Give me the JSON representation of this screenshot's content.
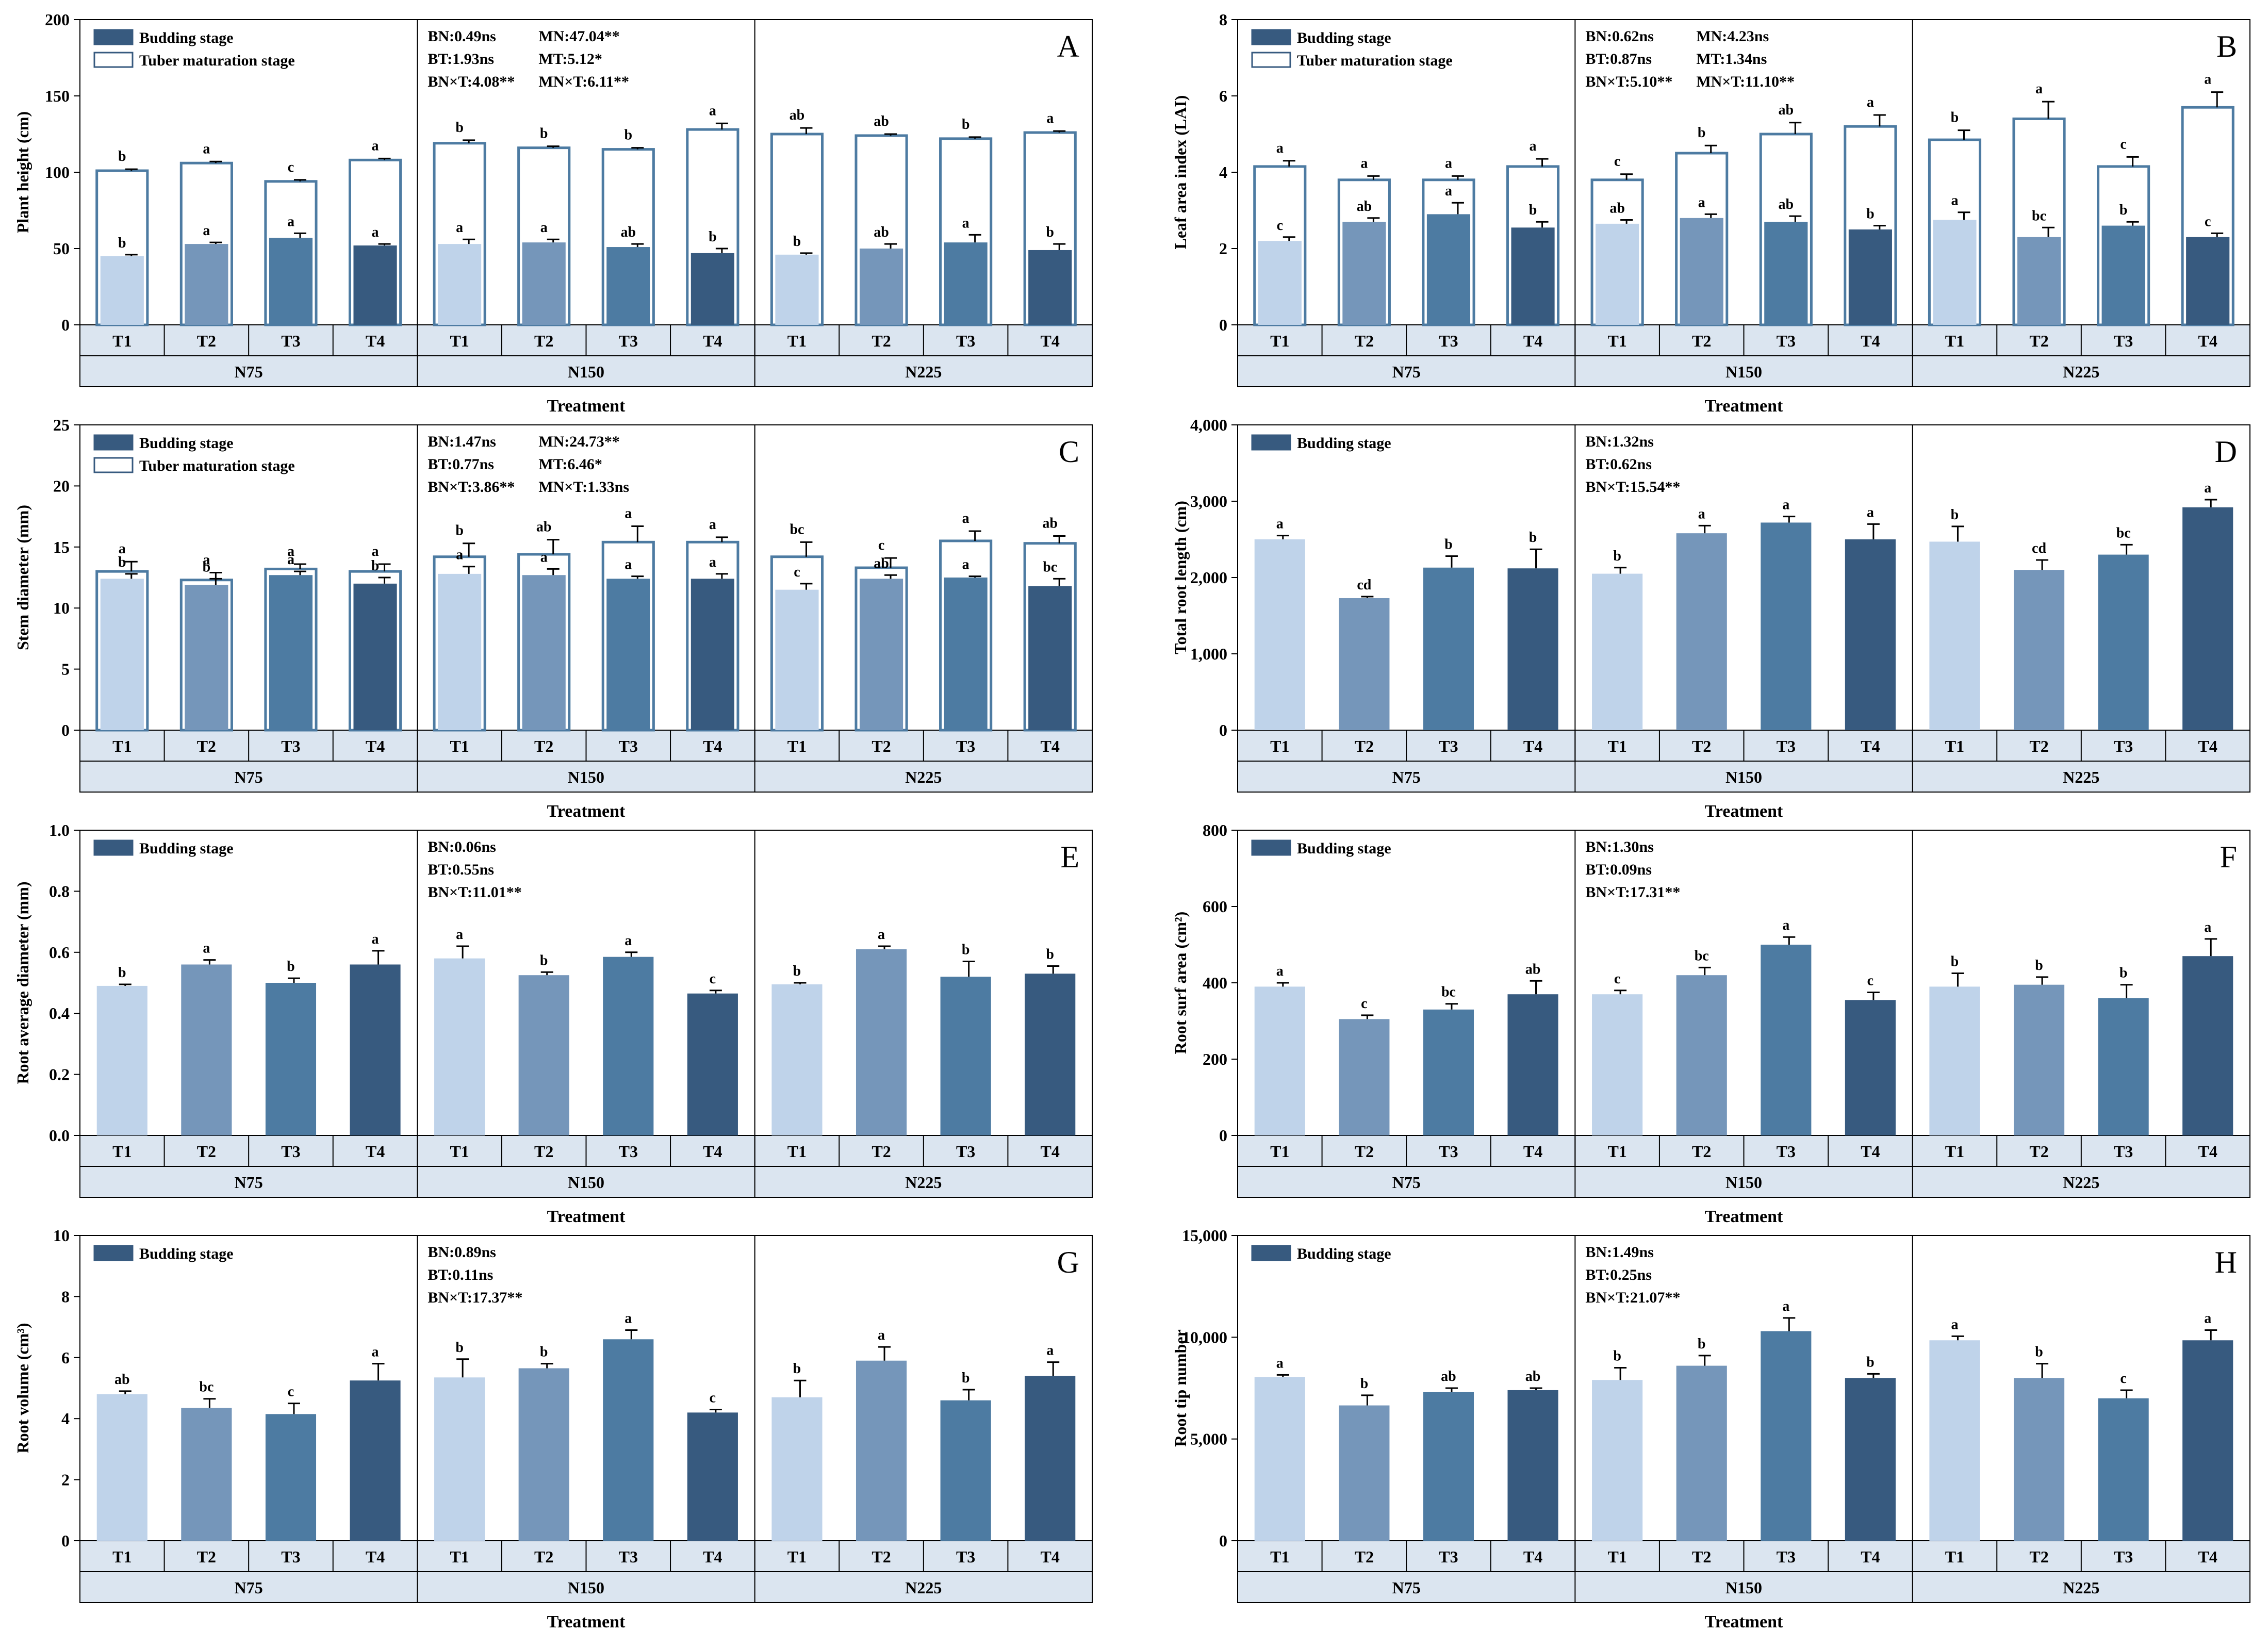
{
  "colors": {
    "T1": "#bfd3ea",
    "T2": "#7596ba",
    "T3": "#4d7ba2",
    "T4": "#375a7f",
    "legend_bud": "#375a7f",
    "outline": "#4d7ba2",
    "strip": "#dbe5f0",
    "axis": "#000000"
  },
  "chart_data": [
    {
      "id": "A",
      "type": "bar",
      "title": "A",
      "ylabel": "Plant height (cm)",
      "xlabel": "Treatment",
      "ylim": [
        0,
        200
      ],
      "yticks": [
        "0",
        "50",
        "100",
        "150",
        "200"
      ],
      "groups": [
        "N75",
        "N150",
        "N225"
      ],
      "categories": [
        "T1",
        "T2",
        "T3",
        "T4"
      ],
      "legend": [
        "Budding stage",
        "Tuber maturation stage"
      ],
      "stats": [
        [
          "BN:0.49ns",
          "BT:1.93ns",
          "BN×T:4.08**"
        ],
        [
          "MN:47.04**",
          "MT:5.12*",
          "MN×T:6.11**"
        ]
      ],
      "series": [
        {
          "name": "Budding stage",
          "values": [
            [
              45,
              53,
              57,
              52
            ],
            [
              53,
              54,
              51,
              47
            ],
            [
              46,
              50,
              54,
              49
            ]
          ],
          "errors": [
            [
              1,
              1,
              3,
              1
            ],
            [
              3,
              2,
              2,
              3
            ],
            [
              1,
              3,
              5,
              4
            ]
          ],
          "letters": [
            [
              "b",
              "a",
              "a",
              "a"
            ],
            [
              "a",
              "a",
              "ab",
              "b"
            ],
            [
              "b",
              "ab",
              "a",
              "b"
            ]
          ]
        },
        {
          "name": "Tuber maturation stage",
          "values": [
            [
              101,
              106,
              94,
              108
            ],
            [
              119,
              116,
              115,
              128
            ],
            [
              125,
              124,
              122,
              126
            ]
          ],
          "errors": [
            [
              1,
              1,
              1,
              1
            ],
            [
              2,
              1,
              1,
              4
            ],
            [
              4,
              1,
              1,
              1
            ]
          ],
          "letters": [
            [
              "b",
              "a",
              "c",
              "a"
            ],
            [
              "b",
              "b",
              "b",
              "a"
            ],
            [
              "ab",
              "ab",
              "b",
              "a"
            ]
          ]
        }
      ]
    },
    {
      "id": "B",
      "type": "bar",
      "title": "B",
      "ylabel": "Leaf area index (LAI)",
      "xlabel": "Treatment",
      "ylim": [
        0,
        8
      ],
      "yticks": [
        "0",
        "2",
        "4",
        "6",
        "8"
      ],
      "groups": [
        "N75",
        "N150",
        "N225"
      ],
      "categories": [
        "T1",
        "T2",
        "T3",
        "T4"
      ],
      "legend": [
        "Budding stage",
        "Tuber maturation stage"
      ],
      "stats": [
        [
          "BN:0.62ns",
          "BT:0.87ns",
          "BN×T:5.10**"
        ],
        [
          "MN:4.23ns",
          "MT:1.34ns",
          "MN×T:11.10**"
        ]
      ],
      "series": [
        {
          "name": "Budding stage",
          "values": [
            [
              2.2,
              2.7,
              2.9,
              2.55
            ],
            [
              2.65,
              2.8,
              2.7,
              2.5
            ],
            [
              2.75,
              2.3,
              2.6,
              2.3
            ]
          ],
          "errors": [
            [
              0.1,
              0.1,
              0.3,
              0.15
            ],
            [
              0.1,
              0.1,
              0.15,
              0.1
            ],
            [
              0.2,
              0.25,
              0.1,
              0.1
            ]
          ],
          "letters": [
            [
              "c",
              "ab",
              "a",
              "b"
            ],
            [
              "ab",
              "a",
              "ab",
              "b"
            ],
            [
              "a",
              "bc",
              "b",
              "c"
            ]
          ]
        },
        {
          "name": "Tuber maturation stage",
          "values": [
            [
              4.15,
              3.8,
              3.8,
              4.15
            ],
            [
              3.8,
              4.5,
              5.0,
              5.2
            ],
            [
              4.85,
              5.4,
              4.15,
              5.7
            ]
          ],
          "errors": [
            [
              0.15,
              0.1,
              0.1,
              0.2
            ],
            [
              0.15,
              0.2,
              0.3,
              0.3
            ],
            [
              0.25,
              0.45,
              0.25,
              0.4
            ]
          ],
          "letters": [
            [
              "a",
              "a",
              "a",
              "a"
            ],
            [
              "c",
              "b",
              "ab",
              "a"
            ],
            [
              "b",
              "a",
              "c",
              "a"
            ]
          ]
        }
      ]
    },
    {
      "id": "C",
      "type": "bar",
      "title": "C",
      "ylabel": "Stem diameter (mm)",
      "xlabel": "Treatment",
      "ylim": [
        0,
        25
      ],
      "yticks": [
        "0",
        "5",
        "10",
        "15",
        "20",
        "25"
      ],
      "groups": [
        "N75",
        "N150",
        "N225"
      ],
      "categories": [
        "T1",
        "T2",
        "T3",
        "T4"
      ],
      "legend": [
        "Budding stage",
        "Tuber maturation stage"
      ],
      "stats": [
        [
          "BN:1.47ns",
          "BT:0.77ns",
          "BN×T:3.86**"
        ],
        [
          "MN:24.73**",
          "MT:6.46*",
          "MN×T:1.33ns"
        ]
      ],
      "series": [
        {
          "name": "Budding stage",
          "values": [
            [
              12.4,
              11.9,
              12.7,
              12.0
            ],
            [
              12.8,
              12.7,
              12.4,
              12.4
            ],
            [
              11.5,
              12.4,
              12.5,
              11.8
            ]
          ],
          "errors": [
            [
              0.4,
              0.5,
              0.3,
              0.5
            ],
            [
              0.6,
              0.5,
              0.2,
              0.4
            ],
            [
              0.5,
              0.3,
              0.1,
              0.6
            ]
          ],
          "letters": [
            [
              "b",
              "b",
              "a",
              "b"
            ],
            [
              "a",
              "a",
              "a",
              "a"
            ],
            [
              "c",
              "ab",
              "a",
              "bc"
            ]
          ]
        },
        {
          "name": "Tuber maturation stage",
          "values": [
            [
              13.0,
              12.3,
              13.2,
              13.0
            ],
            [
              14.2,
              14.4,
              15.4,
              15.4
            ],
            [
              14.2,
              13.3,
              15.5,
              15.3
            ]
          ],
          "errors": [
            [
              0.8,
              0.6,
              0.4,
              0.6
            ],
            [
              1.1,
              1.2,
              1.3,
              0.4
            ],
            [
              1.2,
              0.8,
              0.8,
              0.6
            ]
          ],
          "letters": [
            [
              "a",
              "a",
              "a",
              "a"
            ],
            [
              "b",
              "ab",
              "a",
              "a"
            ],
            [
              "bc",
              "c",
              "a",
              "ab"
            ]
          ]
        }
      ]
    },
    {
      "id": "D",
      "type": "bar",
      "title": "D",
      "ylabel": "Total root length (cm)",
      "xlabel": "Treatment",
      "ylim": [
        0,
        4000
      ],
      "yticks": [
        "0",
        "1,000",
        "2,000",
        "3,000",
        "4,000"
      ],
      "groups": [
        "N75",
        "N150",
        "N225"
      ],
      "categories": [
        "T1",
        "T2",
        "T3",
        "T4"
      ],
      "legend": [
        "Budding stage"
      ],
      "stats": [
        [
          "BN:1.32ns",
          "BT:0.62ns",
          "BN×T:15.54**"
        ]
      ],
      "series": [
        {
          "name": "Budding stage",
          "values": [
            [
              2500,
              1730,
              2130,
              2120
            ],
            [
              2050,
              2580,
              2720,
              2500
            ],
            [
              2470,
              2100,
              2300,
              2920
            ]
          ],
          "errors": [
            [
              50,
              20,
              150,
              250
            ],
            [
              80,
              100,
              80,
              200
            ],
            [
              200,
              130,
              130,
              100
            ]
          ],
          "letters": [
            [
              "a",
              "cd",
              "b",
              "b"
            ],
            [
              "b",
              "a",
              "a",
              "a"
            ],
            [
              "b",
              "cd",
              "bc",
              "a"
            ]
          ]
        }
      ]
    },
    {
      "id": "E",
      "type": "bar",
      "title": "E",
      "ylabel": "Root average diameter (mm)",
      "xlabel": "Treatment",
      "ylim": [
        0,
        1.0
      ],
      "yticks": [
        "0.0",
        "0.2",
        "0.4",
        "0.6",
        "0.8",
        "1.0"
      ],
      "groups": [
        "N75",
        "N150",
        "N225"
      ],
      "categories": [
        "T1",
        "T2",
        "T3",
        "T4"
      ],
      "legend": [
        "Budding stage"
      ],
      "stats": [
        [
          "BN:0.06ns",
          "BT:0.55ns",
          "BN×T:11.01**"
        ]
      ],
      "series": [
        {
          "name": "Budding stage",
          "values": [
            [
              0.49,
              0.56,
              0.5,
              0.56
            ],
            [
              0.58,
              0.525,
              0.585,
              0.465
            ],
            [
              0.495,
              0.61,
              0.52,
              0.53
            ]
          ],
          "errors": [
            [
              0.005,
              0.015,
              0.015,
              0.045
            ],
            [
              0.04,
              0.01,
              0.015,
              0.01
            ],
            [
              0.005,
              0.01,
              0.05,
              0.025
            ]
          ],
          "letters": [
            [
              "b",
              "a",
              "b",
              "a"
            ],
            [
              "a",
              "b",
              "a",
              "c"
            ],
            [
              "b",
              "a",
              "b",
              "b"
            ]
          ]
        }
      ]
    },
    {
      "id": "F",
      "type": "bar",
      "title": "F",
      "ylabel": "Root surf area (cm²)",
      "xlabel": "Treatment",
      "ylim": [
        0,
        800
      ],
      "yticks": [
        "0",
        "200",
        "400",
        "600",
        "800"
      ],
      "groups": [
        "N75",
        "N150",
        "N225"
      ],
      "categories": [
        "T1",
        "T2",
        "T3",
        "T4"
      ],
      "legend": [
        "Budding stage"
      ],
      "stats": [
        [
          "BN:1.30ns",
          "BT:0.09ns",
          "BN×T:17.31**"
        ]
      ],
      "series": [
        {
          "name": "Budding stage",
          "values": [
            [
              390,
              305,
              330,
              370
            ],
            [
              370,
              420,
              500,
              355
            ],
            [
              390,
              395,
              360,
              470
            ]
          ],
          "errors": [
            [
              10,
              10,
              15,
              35
            ],
            [
              10,
              20,
              20,
              20
            ],
            [
              35,
              20,
              35,
              45
            ]
          ],
          "letters": [
            [
              "a",
              "c",
              "bc",
              "ab"
            ],
            [
              "c",
              "bc",
              "a",
              "c"
            ],
            [
              "b",
              "b",
              "b",
              "a"
            ]
          ]
        }
      ]
    },
    {
      "id": "G",
      "type": "bar",
      "title": "G",
      "ylabel": "Root volume (cm³)",
      "xlabel": "Treatment",
      "ylim": [
        0,
        10
      ],
      "yticks": [
        "0",
        "2",
        "4",
        "6",
        "8",
        "10"
      ],
      "groups": [
        "N75",
        "N150",
        "N225"
      ],
      "categories": [
        "T1",
        "T2",
        "T3",
        "T4"
      ],
      "legend": [
        "Budding stage"
      ],
      "stats": [
        [
          "BN:0.89ns",
          "BT:0.11ns",
          "BN×T:17.37**"
        ]
      ],
      "series": [
        {
          "name": "Budding stage",
          "values": [
            [
              4.8,
              4.35,
              4.15,
              5.25
            ],
            [
              5.35,
              5.65,
              6.6,
              4.2
            ],
            [
              4.7,
              5.9,
              4.6,
              5.4
            ]
          ],
          "errors": [
            [
              0.1,
              0.3,
              0.35,
              0.55
            ],
            [
              0.6,
              0.15,
              0.3,
              0.1
            ],
            [
              0.55,
              0.45,
              0.35,
              0.45
            ]
          ],
          "letters": [
            [
              "ab",
              "bc",
              "c",
              "a"
            ],
            [
              "b",
              "b",
              "a",
              "c"
            ],
            [
              "b",
              "a",
              "b",
              "a"
            ]
          ]
        }
      ]
    },
    {
      "id": "H",
      "type": "bar",
      "title": "H",
      "ylabel": "Root tip number",
      "xlabel": "Treatment",
      "ylim": [
        0,
        15000
      ],
      "yticks": [
        "0",
        "5,000",
        "10,000",
        "15,000"
      ],
      "groups": [
        "N75",
        "N150",
        "N225"
      ],
      "categories": [
        "T1",
        "T2",
        "T3",
        "T4"
      ],
      "legend": [
        "Budding stage"
      ],
      "stats": [
        [
          "BN:1.49ns",
          "BT:0.25ns",
          "BN×T:21.07**"
        ]
      ],
      "series": [
        {
          "name": "Budding stage",
          "values": [
            [
              8050,
              6650,
              7300,
              7400
            ],
            [
              7900,
              8600,
              10300,
              8000
            ],
            [
              9850,
              8000,
              7000,
              9850
            ]
          ],
          "errors": [
            [
              100,
              500,
              200,
              100
            ],
            [
              600,
              500,
              650,
              200
            ],
            [
              200,
              700,
              400,
              500
            ]
          ],
          "letters": [
            [
              "a",
              "b",
              "ab",
              "ab"
            ],
            [
              "b",
              "b",
              "a",
              "b"
            ],
            [
              "a",
              "b",
              "c",
              "a"
            ]
          ]
        }
      ]
    }
  ]
}
